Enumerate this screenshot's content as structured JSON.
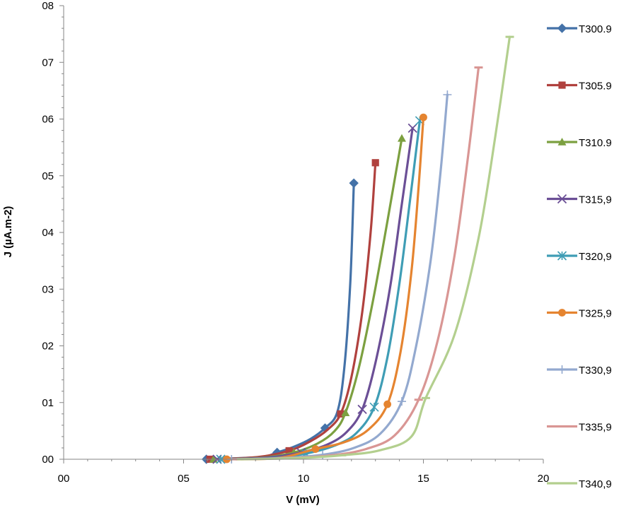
{
  "chart_data": {
    "type": "line",
    "xlabel": "V  (mV)",
    "ylabel": "J (µA.m-2)",
    "x_ticks": [
      "00",
      "05",
      "10",
      "15",
      "20"
    ],
    "y_ticks": [
      "00",
      "01",
      "02",
      "03",
      "04",
      "05",
      "06",
      "07",
      "08"
    ],
    "xlim": [
      0,
      20
    ],
    "ylim": [
      0,
      8
    ],
    "grid": false,
    "legend_position": "right",
    "series": [
      {
        "name": "T300.9",
        "color": "#4472a8",
        "marker": "diamond",
        "x": [
          5.95,
          8.2,
          8.9,
          9.6,
          10.3,
          10.9,
          11.4,
          11.7,
          11.95,
          12.1
        ],
        "y": [
          0.0,
          0.04,
          0.12,
          0.22,
          0.36,
          0.55,
          0.82,
          1.6,
          3.1,
          4.87
        ]
      },
      {
        "name": "T305.9",
        "color": "#b0413e",
        "marker": "square",
        "x": [
          6.1,
          8.1,
          9.4,
          10.3,
          11.0,
          11.55,
          12.0,
          12.45,
          12.8,
          13.0
        ],
        "y": [
          0.0,
          0.04,
          0.15,
          0.32,
          0.52,
          0.8,
          1.45,
          2.6,
          4.0,
          5.23
        ]
      },
      {
        "name": "T310.9",
        "color": "#7ca040",
        "marker": "triangle",
        "x": [
          6.25,
          8.3,
          9.6,
          10.6,
          11.3,
          11.75,
          12.3,
          12.9,
          13.5,
          14.1
        ],
        "y": [
          0.0,
          0.03,
          0.12,
          0.28,
          0.5,
          0.82,
          1.6,
          2.8,
          4.2,
          5.66
        ]
      },
      {
        "name": "T315,9",
        "color": "#6b4f96",
        "marker": "x",
        "x": [
          6.4,
          8.5,
          9.9,
          11.0,
          11.8,
          12.45,
          13.0,
          13.6,
          14.1,
          14.55
        ],
        "y": [
          0.0,
          0.03,
          0.12,
          0.26,
          0.48,
          0.88,
          1.7,
          3.0,
          4.5,
          5.84
        ]
      },
      {
        "name": "T320,9",
        "color": "#3f9db5",
        "marker": "asterisk",
        "x": [
          6.55,
          8.7,
          10.1,
          11.3,
          12.2,
          12.95,
          13.5,
          14.0,
          14.45,
          14.85
        ],
        "y": [
          0.0,
          0.02,
          0.1,
          0.24,
          0.46,
          0.92,
          1.8,
          3.1,
          4.6,
          5.97
        ]
      },
      {
        "name": "T325,9",
        "color": "#e58430",
        "marker": "circle",
        "x": [
          6.8,
          8.9,
          10.5,
          11.7,
          12.7,
          13.5,
          14.05,
          14.5,
          14.8,
          15.0
        ],
        "y": [
          0.0,
          0.02,
          0.18,
          0.3,
          0.52,
          0.97,
          1.9,
          3.3,
          4.8,
          6.03
        ]
      },
      {
        "name": "T330,9",
        "color": "#93a9cf",
        "marker": "plus",
        "x": [
          7.0,
          9.1,
          10.8,
          12.1,
          13.2,
          14.1,
          14.7,
          15.3,
          15.7,
          16.0
        ],
        "y": [
          0.0,
          0.02,
          0.08,
          0.2,
          0.45,
          1.02,
          2.0,
          3.5,
          5.0,
          6.43
        ]
      },
      {
        "name": "T335,9",
        "color": "#d99694",
        "marker": "dash",
        "x": [
          7.2,
          9.4,
          11.2,
          12.6,
          13.8,
          14.8,
          15.6,
          16.3,
          16.85,
          17.3
        ],
        "y": [
          0.0,
          0.02,
          0.07,
          0.18,
          0.42,
          1.05,
          2.1,
          3.6,
          5.3,
          6.91
        ]
      },
      {
        "name": "T340,9",
        "color": "#b3cf8e",
        "marker": "dash",
        "x": [
          7.4,
          9.7,
          11.6,
          13.2,
          14.5,
          15.1,
          16.3,
          17.3,
          18.0,
          18.6
        ],
        "y": [
          0.0,
          0.02,
          0.07,
          0.16,
          0.4,
          1.08,
          2.2,
          3.9,
          5.7,
          7.45
        ]
      }
    ]
  }
}
